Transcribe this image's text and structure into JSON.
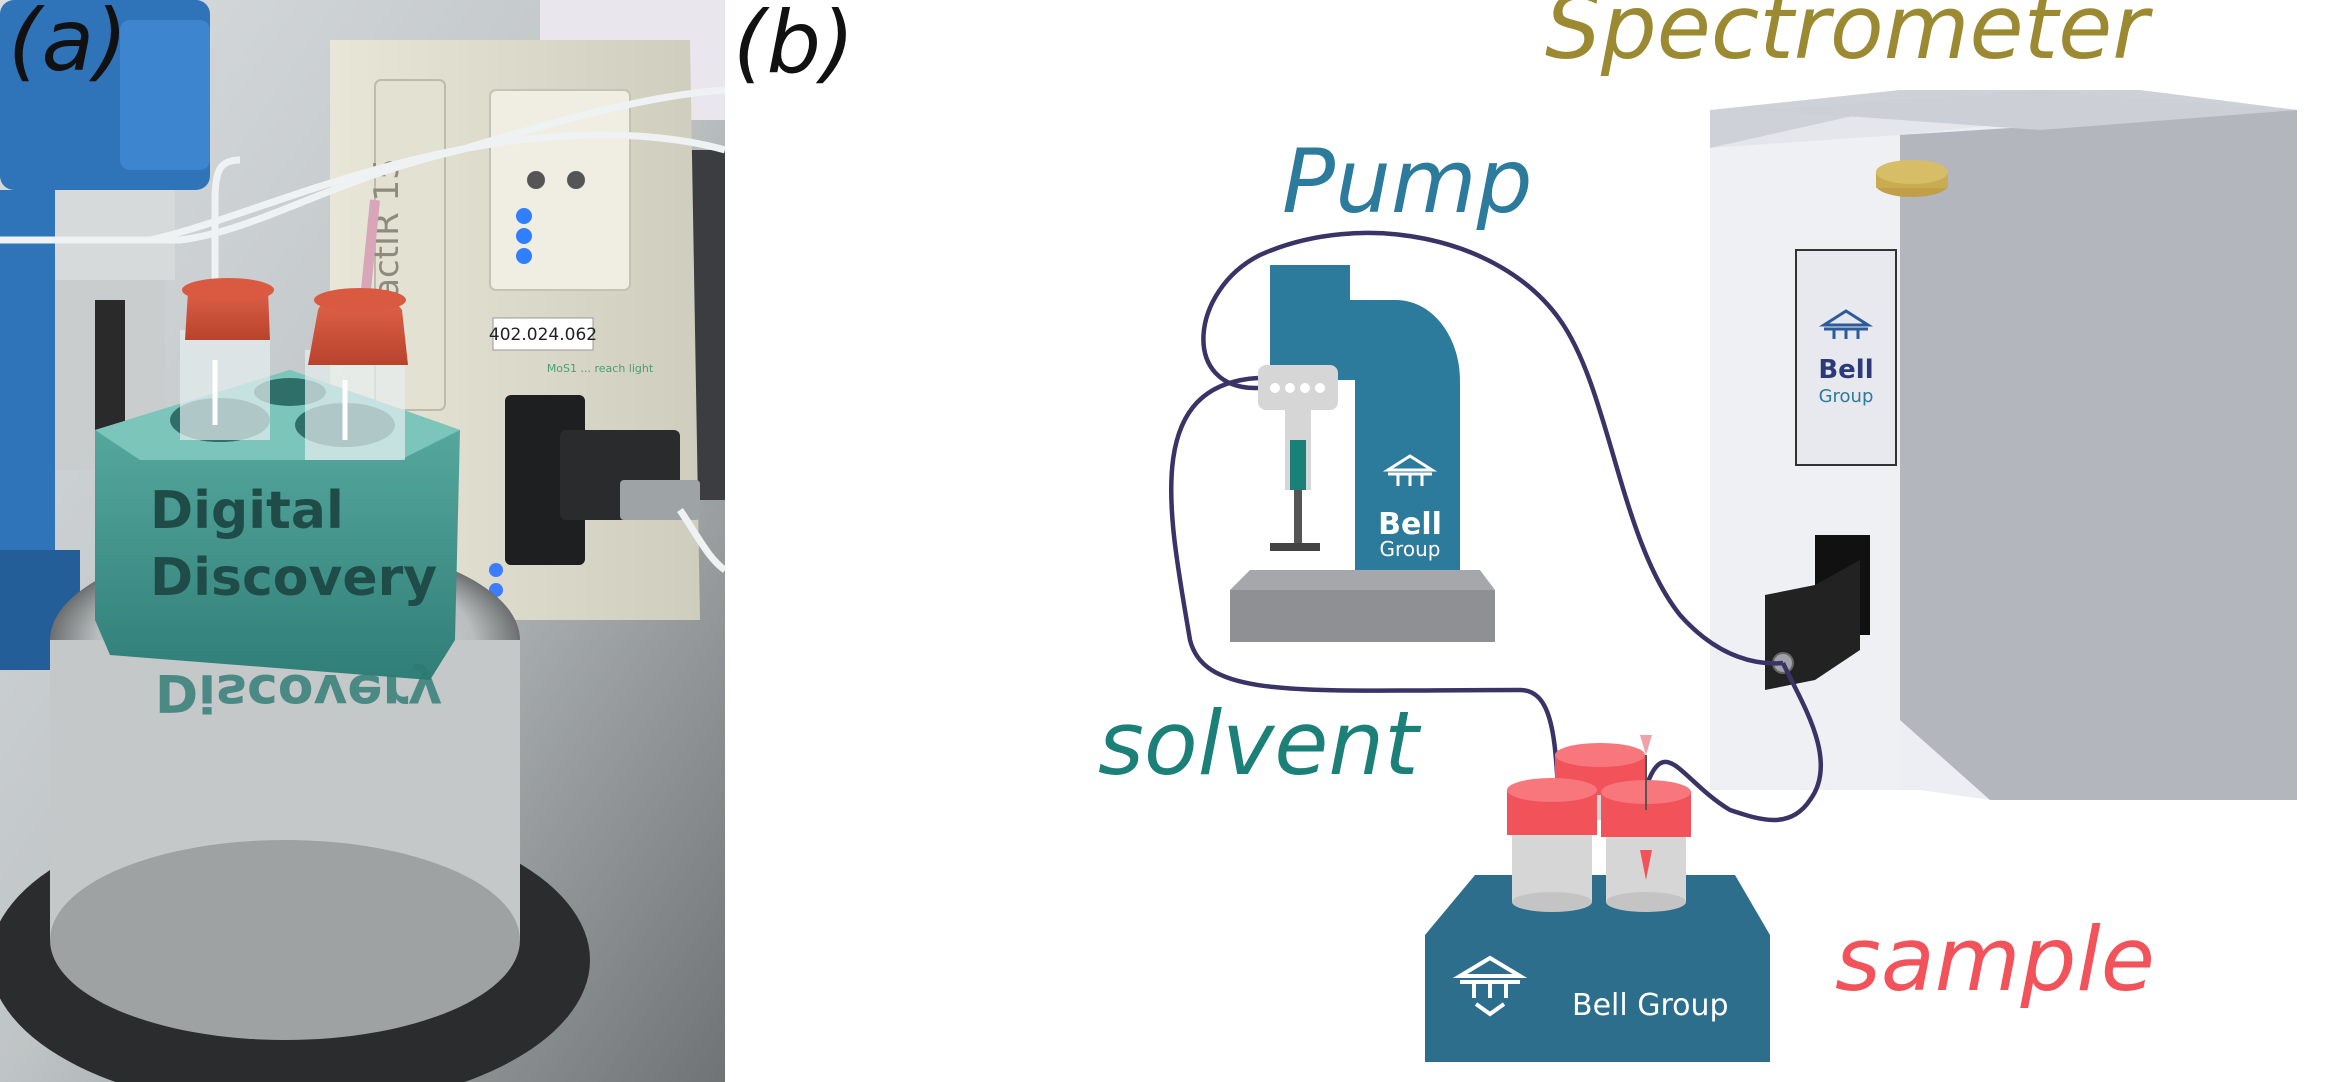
{
  "panel_a": {
    "label": "(a)",
    "engraving_line1": "Digital",
    "engraving_line2": "Discovery",
    "engraving_mirror": "Discovery",
    "device_brand": "ReactIR 15",
    "serial_number": "402.024.062",
    "note_text": "MoS1 ... reach light"
  },
  "panel_b": {
    "label": "(b)",
    "spectrometer_label": "Spectrometer",
    "pump_label": "Pump",
    "solvent_label": "solvent",
    "sample_label": "sample",
    "logo_bell": "Bell",
    "logo_group": "Group",
    "logo_full": "Bell Group"
  },
  "colors": {
    "spectrometer": "#9c8a32",
    "pump": "#2c7a9c",
    "solvent": "#1a8078",
    "sample": "#f2525a",
    "tubing": "#3a3466",
    "holder": "#2c6e8c",
    "cap": "#f2525a"
  }
}
